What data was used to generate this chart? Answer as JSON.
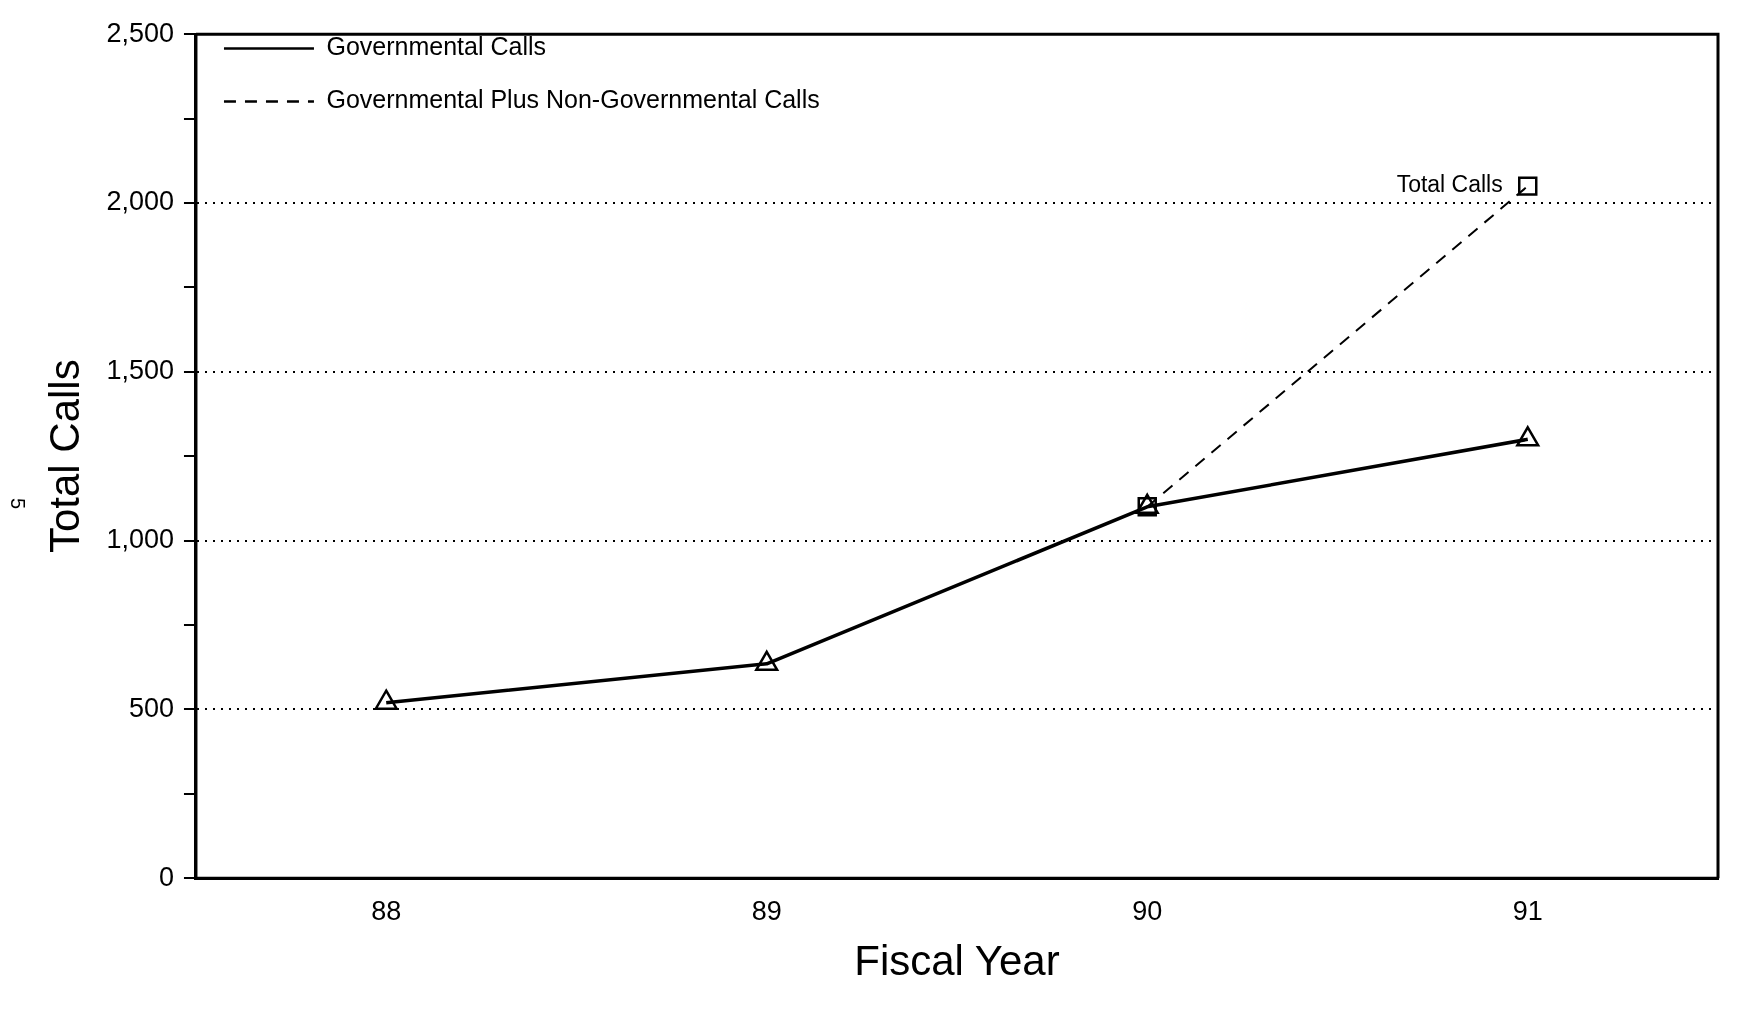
{
  "chart_data": {
    "type": "line",
    "xlabel": "Fiscal Year",
    "ylabel": "Total Calls",
    "categories": [
      "88",
      "89",
      "90",
      "91"
    ],
    "series": [
      {
        "name": "Governmental Calls",
        "color": "#000000",
        "values": [
          520,
          635,
          1100,
          1300
        ],
        "marker": "triangle",
        "line_style": "solid"
      },
      {
        "name": "Governmental Plus Non-Governmental Calls",
        "color": "#000000",
        "values": [
          null,
          null,
          1100,
          2050
        ],
        "marker": "square",
        "line_style": "dashed"
      }
    ],
    "ylim": [
      0,
      2500
    ],
    "yticks": [
      0,
      {
        "value": 250,
        "label": null
      },
      500,
      {
        "value": 750,
        "label": null
      },
      {
        "value": 1000,
        "label": "1,000"
      },
      {
        "value": 1250,
        "label": null
      },
      {
        "value": 1500,
        "label": "1,500"
      },
      {
        "value": 1750,
        "label": null
      },
      {
        "value": 2000,
        "label": "2,000"
      },
      {
        "value": 2250,
        "label": null
      },
      {
        "value": 2500,
        "label": "2,500"
      }
    ],
    "grid": "y",
    "legend": "top left",
    "annotations": [
      {
        "text": "Total Calls",
        "x": "91",
        "y": 2050
      },
      "5"
    ]
  }
}
